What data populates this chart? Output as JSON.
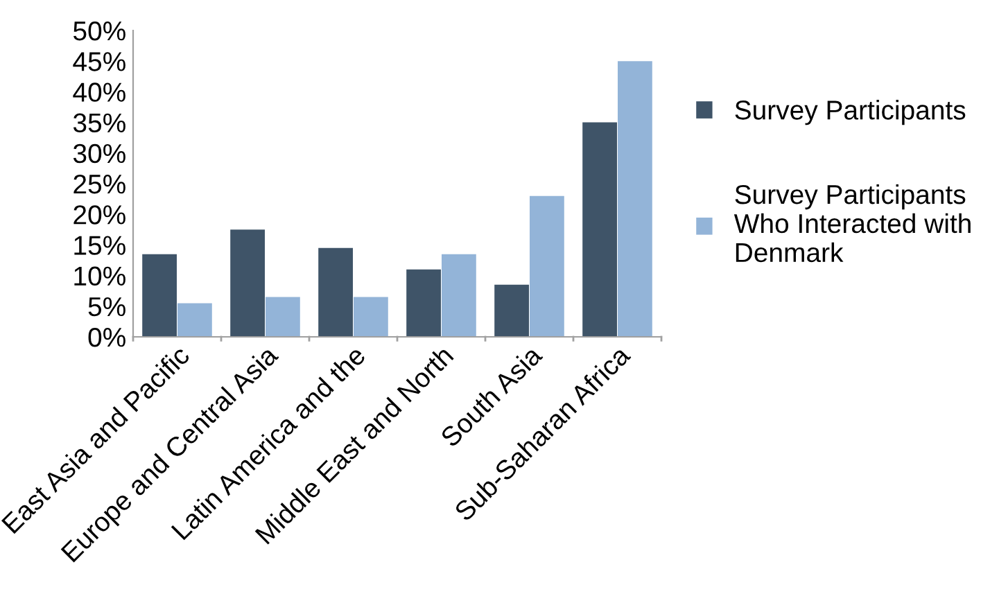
{
  "chart_data": {
    "type": "bar",
    "categories": [
      "East Asia and Pacific",
      "Europe and Central Asia",
      "Latin America and the",
      "Middle East and North",
      "South Asia",
      "Sub-Saharan Africa"
    ],
    "series": [
      {
        "name": "Survey Participants",
        "color": "#3f5468",
        "values": [
          13.5,
          17.5,
          14.5,
          11,
          8.5,
          35
        ]
      },
      {
        "name": "Survey Participants\nWho Interacted with\nDenmark",
        "color": "#93b4d8",
        "values": [
          5.5,
          6.5,
          6.5,
          13.5,
          23,
          45
        ]
      }
    ],
    "ylim": [
      0,
      50
    ],
    "yticks": [
      {
        "value": 0,
        "label": "0%"
      },
      {
        "value": 5,
        "label": "5%"
      },
      {
        "value": 10,
        "label": "10%"
      },
      {
        "value": 15,
        "label": "15%"
      },
      {
        "value": 20,
        "label": "20%"
      },
      {
        "value": 25,
        "label": "25%"
      },
      {
        "value": 30,
        "label": "30%"
      },
      {
        "value": 35,
        "label": "35%"
      },
      {
        "value": 40,
        "label": "40%"
      },
      {
        "value": 45,
        "label": "45%"
      },
      {
        "value": 50,
        "label": "50%"
      }
    ],
    "grid": false,
    "legend": "right"
  }
}
